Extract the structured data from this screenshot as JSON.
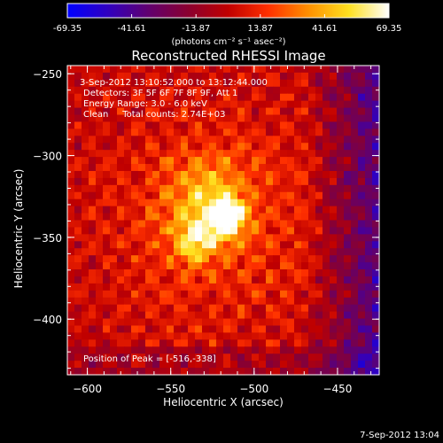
{
  "chart_data": {
    "type": "heatmap",
    "title": "Reconstructed RHESSI Image",
    "colorbar": {
      "ticks": [
        "-69.35",
        "-41.61",
        "-13.87",
        "13.87",
        "41.61",
        "69.35"
      ],
      "range": [
        -69.35,
        69.35
      ],
      "unit_label": "(photons cm⁻² s⁻¹ asec⁻²)",
      "colors": [
        "#0000ff",
        "#3000c0",
        "#600070",
        "#8a0030",
        "#c00000",
        "#ff3000",
        "#ff9000",
        "#ffe020",
        "#ffffff"
      ]
    },
    "xlabel": "Heliocentric X (arcsec)",
    "ylabel": "Heliocentric Y (arcsec)",
    "xlim": [
      -612,
      -425
    ],
    "ylim": [
      -434,
      -245
    ],
    "xticks": [
      -600,
      -550,
      -500,
      -450
    ],
    "yticks": [
      -250,
      -300,
      -350,
      -400
    ],
    "xtick_labels": [
      "−600",
      "−550",
      "−500",
      "−450"
    ],
    "ytick_labels": [
      "−250",
      "−300",
      "−350",
      "−400"
    ],
    "peak": {
      "x": -516,
      "y": -338,
      "value": 69.35
    },
    "sources": [
      {
        "x": -516,
        "y": -338,
        "sigma": 7,
        "amplitude": 69
      },
      {
        "x": -535,
        "y": -352,
        "sigma": 9,
        "amplitude": 40
      },
      {
        "x": -528,
        "y": -325,
        "sigma": 16,
        "amplitude": 30
      },
      {
        "x": -525,
        "y": -340,
        "sigma": 45,
        "amplitude": 20
      }
    ],
    "annotations": [
      "3-Sep-2012 13:10:52.000 to 13:12:44.000",
      "Detectors: 3F 5F 6F 7F 8F 9F, Att 1",
      "Energy Range: 3.0 - 6.0 keV",
      "Clean     Total counts: 2.74E+03"
    ],
    "peak_label": "Position of Peak = [-516,-338]",
    "footer_date": "7-Sep-2012 13:04"
  }
}
